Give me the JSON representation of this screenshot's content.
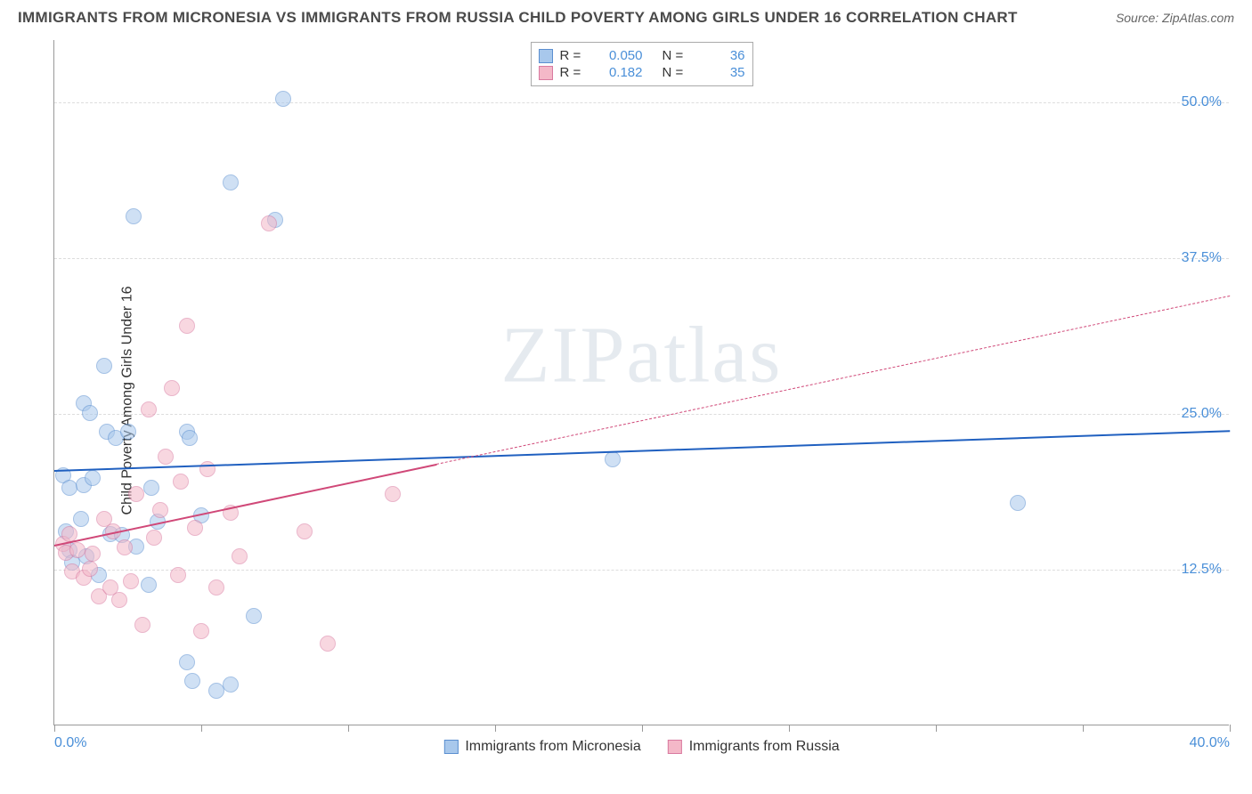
{
  "title": "IMMIGRANTS FROM MICRONESIA VS IMMIGRANTS FROM RUSSIA CHILD POVERTY AMONG GIRLS UNDER 16 CORRELATION CHART",
  "source": "Source: ZipAtlas.com",
  "ylabel": "Child Poverty Among Girls Under 16",
  "watermark_a": "ZIP",
  "watermark_b": "atlas",
  "chart": {
    "type": "scatter",
    "xlim": [
      0,
      40
    ],
    "ylim": [
      0,
      55
    ],
    "ytick_values": [
      12.5,
      25.0,
      37.5,
      50.0
    ],
    "ytick_labels": [
      "12.5%",
      "25.0%",
      "37.5%",
      "50.0%"
    ],
    "xtick_values": [
      0,
      5,
      10,
      15,
      20,
      25,
      30,
      35,
      40
    ],
    "xtick_labels_shown": {
      "0": "0.0%",
      "40": "40.0%"
    },
    "grid_color": "#dddddd",
    "background_color": "#ffffff",
    "point_radius": 9,
    "point_opacity": 0.55,
    "series": [
      {
        "name": "Immigrants from Micronesia",
        "fill_color": "#a8c8ec",
        "stroke_color": "#5b8fd0",
        "trend_color": "#2060c0",
        "trend_width": 2.5,
        "trend": {
          "x0": 0,
          "y0": 20.5,
          "x1": 40,
          "y1": 23.7,
          "dashed_from_x": null
        },
        "R": "0.050",
        "N": "36",
        "points": [
          [
            0.3,
            20
          ],
          [
            0.5,
            19
          ],
          [
            0.4,
            15.5
          ],
          [
            0.5,
            14
          ],
          [
            0.6,
            13
          ],
          [
            1.0,
            25.8
          ],
          [
            1.2,
            25.0
          ],
          [
            1.0,
            19.2
          ],
          [
            0.9,
            16.5
          ],
          [
            1.3,
            19.8
          ],
          [
            1.1,
            13.5
          ],
          [
            1.8,
            23.5
          ],
          [
            1.7,
            28.8
          ],
          [
            1.9,
            15.3
          ],
          [
            2.3,
            15.2
          ],
          [
            2.1,
            23.0
          ],
          [
            2.5,
            23.5
          ],
          [
            2.7,
            40.8
          ],
          [
            2.8,
            14.3
          ],
          [
            3.3,
            19.0
          ],
          [
            3.5,
            16.3
          ],
          [
            3.2,
            11.2
          ],
          [
            4.5,
            23.5
          ],
          [
            4.6,
            23.0
          ],
          [
            4.5,
            5.0
          ],
          [
            4.7,
            3.5
          ],
          [
            5.0,
            16.8
          ],
          [
            5.5,
            2.7
          ],
          [
            6.0,
            43.5
          ],
          [
            6.8,
            8.7
          ],
          [
            7.5,
            40.5
          ],
          [
            7.8,
            50.2
          ],
          [
            19.0,
            21.3
          ],
          [
            32.8,
            17.8
          ],
          [
            6.0,
            3.2
          ],
          [
            1.5,
            12.0
          ]
        ]
      },
      {
        "name": "Immigrants from Russia",
        "fill_color": "#f4b8c8",
        "stroke_color": "#d97aa0",
        "trend_color": "#d04878",
        "trend_width": 2.5,
        "trend": {
          "x0": 0,
          "y0": 14.5,
          "x1": 40,
          "y1": 34.5,
          "dashed_from_x": 13
        },
        "R": "0.182",
        "N": "35",
        "points": [
          [
            0.3,
            14.5
          ],
          [
            0.4,
            13.8
          ],
          [
            0.6,
            12.3
          ],
          [
            0.5,
            15.3
          ],
          [
            0.8,
            14.0
          ],
          [
            1.0,
            11.8
          ],
          [
            1.2,
            12.5
          ],
          [
            1.5,
            10.3
          ],
          [
            1.3,
            13.7
          ],
          [
            1.7,
            16.5
          ],
          [
            1.9,
            11.0
          ],
          [
            2.0,
            15.5
          ],
          [
            2.2,
            10.0
          ],
          [
            2.4,
            14.2
          ],
          [
            2.6,
            11.5
          ],
          [
            2.8,
            18.5
          ],
          [
            3.0,
            8.0
          ],
          [
            3.2,
            25.3
          ],
          [
            3.4,
            15.0
          ],
          [
            3.6,
            17.2
          ],
          [
            3.8,
            21.5
          ],
          [
            4.0,
            27.0
          ],
          [
            4.3,
            19.5
          ],
          [
            4.5,
            32.0
          ],
          [
            4.8,
            15.8
          ],
          [
            5.0,
            7.5
          ],
          [
            5.2,
            20.5
          ],
          [
            5.5,
            11.0
          ],
          [
            6.0,
            17.0
          ],
          [
            6.3,
            13.5
          ],
          [
            7.3,
            40.2
          ],
          [
            8.5,
            15.5
          ],
          [
            9.3,
            6.5
          ],
          [
            11.5,
            18.5
          ],
          [
            4.2,
            12.0
          ]
        ]
      }
    ]
  },
  "legend_top": {
    "r_label": "R =",
    "n_label": "N ="
  }
}
